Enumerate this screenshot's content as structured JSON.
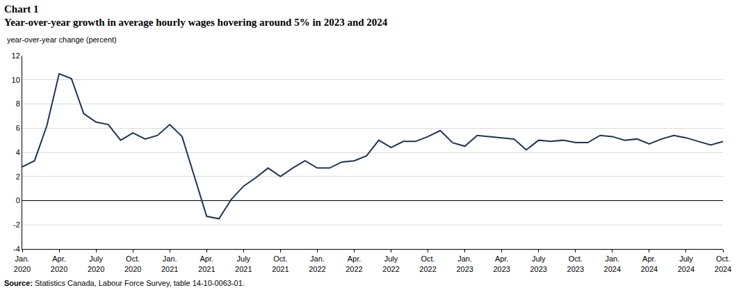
{
  "chart_data": {
    "type": "line",
    "title": "Chart 1",
    "subtitle": "Year-over-year growth in average hourly wages hovering around 5% in 2023 and 2024",
    "y_label": "year-over-year change (percent)",
    "note_label": "Source:",
    "note": "Statistics Canada, Labour Force Survey, table 14-10-0063-01.",
    "categories": [
      "Jan. 2020",
      null,
      null,
      "Apr. 2020",
      null,
      null,
      "July 2020",
      null,
      null,
      "Oct. 2020",
      null,
      null,
      "Jan. 2021",
      null,
      null,
      "Apr. 2021",
      null,
      null,
      "July 2021",
      null,
      null,
      "Oct. 2021",
      null,
      null,
      "Jan. 2022",
      null,
      null,
      "Apr. 2022",
      null,
      null,
      "July 2022",
      null,
      null,
      "Oct. 2022",
      null,
      null,
      "Jan. 2023",
      null,
      null,
      "Apr. 2023",
      null,
      null,
      "July 2023",
      null,
      null,
      "Oct. 2023",
      null,
      null,
      "Jan. 2024",
      null,
      null,
      "Apr. 2024",
      null,
      null,
      "July 2024",
      null,
      null,
      "Oct. 2024"
    ],
    "values": [
      2.8,
      3.3,
      6.2,
      10.5,
      10.1,
      7.2,
      6.5,
      6.3,
      5.0,
      5.6,
      5.1,
      5.4,
      6.3,
      5.3,
      2.0,
      -1.3,
      -1.5,
      0.1,
      1.2,
      1.9,
      2.7,
      2.0,
      2.7,
      3.3,
      2.7,
      2.7,
      3.2,
      3.3,
      3.7,
      5.0,
      4.4,
      4.9,
      4.9,
      5.3,
      5.8,
      4.8,
      4.5,
      5.4,
      5.3,
      5.2,
      5.1,
      4.2,
      5.0,
      4.9,
      5.0,
      4.8,
      4.8,
      5.4,
      5.3,
      5.0,
      5.1,
      4.7,
      5.1,
      5.4,
      5.2,
      4.9,
      4.6,
      4.9
    ],
    "color": "#1f3354",
    "ylim": [
      -4,
      12
    ],
    "yticks": [
      -4,
      -2,
      0,
      2,
      4,
      6,
      8,
      10,
      12
    ],
    "grid": true
  }
}
